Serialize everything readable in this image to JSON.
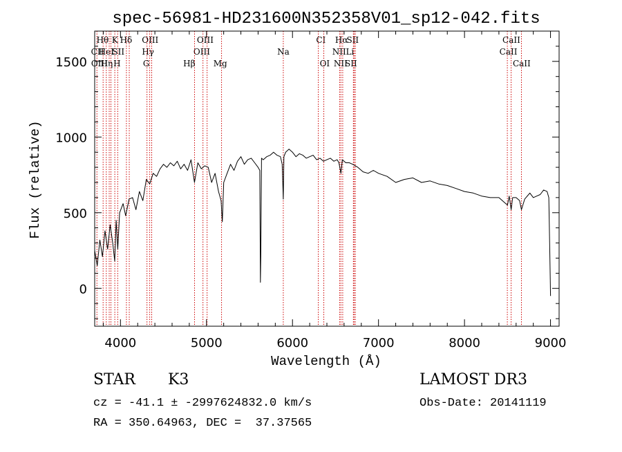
{
  "chart_data": {
    "type": "line",
    "title": "spec-56981-HD231600N352358V01_sp12-042.fits",
    "xlabel": "Wavelength (Å)",
    "ylabel": "Flux (relative)",
    "xlim": [
      3700,
      9100
    ],
    "ylim": [
      -250,
      1700
    ],
    "x_ticks": [
      "4000",
      "5000",
      "6000",
      "7000",
      "8000",
      "9000"
    ],
    "y_ticks": [
      "0",
      "500",
      "1000",
      "1500"
    ],
    "x_tick_values": [
      4000,
      5000,
      6000,
      7000,
      8000,
      9000
    ],
    "y_tick_values": [
      0,
      500,
      1000,
      1500
    ],
    "grid": false,
    "line_color": "#000000",
    "marker_color": "#cc0000",
    "series": [
      {
        "x": [
          3700,
          3730,
          3760,
          3790,
          3820,
          3850,
          3880,
          3910,
          3933,
          3950,
          3968,
          3990,
          4030,
          4060,
          4100,
          4140,
          4180,
          4220,
          4260,
          4300,
          4340,
          4380,
          4420,
          4460,
          4500,
          4540,
          4580,
          4620,
          4660,
          4700,
          4740,
          4780,
          4820,
          4860,
          4900,
          4940,
          4980,
          5020,
          5060,
          5100,
          5140,
          5170,
          5184,
          5200,
          5240,
          5280,
          5320,
          5360,
          5400,
          5440,
          5480,
          5520,
          5560,
          5600,
          5620,
          5627,
          5632,
          5640,
          5660,
          5700,
          5740,
          5780,
          5820,
          5860,
          5880,
          5893,
          5900,
          5920,
          5960,
          6000,
          6040,
          6080,
          6120,
          6160,
          6200,
          6240,
          6280,
          6320,
          6360,
          6400,
          6440,
          6480,
          6520,
          6540,
          6563,
          6580,
          6620,
          6660,
          6700,
          6760,
          6820,
          6880,
          6940,
          7000,
          7100,
          7200,
          7300,
          7400,
          7500,
          7600,
          7700,
          7800,
          7900,
          8000,
          8100,
          8200,
          8300,
          8400,
          8480,
          8500,
          8520,
          8542,
          8560,
          8600,
          8640,
          8662,
          8700,
          8760,
          8800,
          8840,
          8880,
          8920,
          8960,
          8980,
          8990,
          9000
        ],
        "y": [
          250,
          150,
          320,
          210,
          380,
          260,
          420,
          300,
          180,
          450,
          260,
          500,
          560,
          480,
          590,
          600,
          520,
          640,
          580,
          720,
          690,
          760,
          740,
          790,
          820,
          800,
          830,
          810,
          840,
          790,
          820,
          780,
          850,
          700,
          830,
          790,
          810,
          800,
          700,
          760,
          640,
          580,
          440,
          700,
          760,
          820,
          780,
          840,
          870,
          820,
          850,
          860,
          830,
          800,
          780,
          40,
          220,
          860,
          850,
          870,
          880,
          900,
          880,
          870,
          820,
          590,
          870,
          900,
          920,
          900,
          870,
          890,
          880,
          860,
          870,
          880,
          850,
          860,
          840,
          850,
          860,
          840,
          850,
          830,
          760,
          850,
          830,
          830,
          820,
          800,
          770,
          760,
          780,
          760,
          740,
          700,
          720,
          730,
          700,
          710,
          690,
          680,
          660,
          640,
          630,
          610,
          600,
          600,
          560,
          550,
          610,
          520,
          600,
          600,
          580,
          520,
          590,
          630,
          600,
          610,
          620,
          650,
          640,
          600,
          300,
          -50
        ]
      }
    ],
    "line_markers": [
      {
        "label": "Hθ",
        "wavelength": 3798,
        "row": 1,
        "text_x": 3792
      },
      {
        "label": "K",
        "wavelength": 3934,
        "row": 1,
        "text_x": 3935
      },
      {
        "label": "Hδ",
        "wavelength": 4102,
        "row": 1,
        "text_x": 4065
      },
      {
        "label": "OIII",
        "wavelength": 4363,
        "row": 1,
        "text_x": 4345
      },
      {
        "label": "OIII",
        "wavelength": 4959,
        "row": 1,
        "text_x": 4985
      },
      {
        "label": "CI",
        "wavelength": 6300,
        "row": 1,
        "text_x": 6330
      },
      {
        "label": "Hα",
        "wavelength": 6563,
        "row": 1,
        "text_x": 6570
      },
      {
        "label": "SII",
        "wavelength": 6717,
        "row": 1,
        "text_x": 6700
      },
      {
        "label": "CaII",
        "wavelength": 8498,
        "row": 1,
        "text_x": 8545
      },
      {
        "label": "CII",
        "wavelength": 3726,
        "row": 2,
        "text_x": 3732
      },
      {
        "label": "HeI",
        "wavelength": 3889,
        "row": 2,
        "text_x": 3835
      },
      {
        "label": "SII",
        "wavelength": 4069,
        "row": 2,
        "text_x": 3975
      },
      {
        "label": "Hγ",
        "wavelength": 4340,
        "row": 2,
        "text_x": 4320
      },
      {
        "label": "OIII",
        "wavelength": 5007,
        "row": 2,
        "text_x": 4945
      },
      {
        "label": "Na",
        "wavelength": 5893,
        "row": 2,
        "text_x": 5893
      },
      {
        "label": "NII",
        "wavelength": 6548,
        "row": 2,
        "text_x": 6543
      },
      {
        "label": "Li",
        "wavelength": 6708,
        "row": 2,
        "text_x": 6668
      },
      {
        "label": "CaII",
        "wavelength": 8542,
        "row": 2,
        "text_x": 8510
      },
      {
        "label": "OIII",
        "wavelength": 3869,
        "row": 3,
        "text_x": 3755
      },
      {
        "label": "Hη",
        "wavelength": 3835,
        "row": 3,
        "text_x": 3840
      },
      {
        "label": "H",
        "wavelength": 3968,
        "row": 3,
        "text_x": 3960
      },
      {
        "label": "G",
        "wavelength": 4308,
        "row": 3,
        "text_x": 4300
      },
      {
        "label": "Hβ",
        "wavelength": 4861,
        "row": 3,
        "text_x": 4800
      },
      {
        "label": "Mg",
        "wavelength": 5175,
        "row": 3,
        "text_x": 5160
      },
      {
        "label": "OI",
        "wavelength": 6364,
        "row": 3,
        "text_x": 6375
      },
      {
        "label": "NII",
        "wavelength": 6584,
        "row": 3,
        "text_x": 6560
      },
      {
        "label": "SII",
        "wavelength": 6731,
        "row": 3,
        "text_x": 6680
      },
      {
        "label": "CaII",
        "wavelength": 8662,
        "row": 3,
        "text_x": 8665
      }
    ]
  },
  "info": {
    "object_type": "STAR",
    "subclass": "K3",
    "survey": "LAMOST DR3",
    "redshift": "cz = -41.1 ± -2997624832.0 km/s",
    "obs_date": "Obs-Date: 20141119",
    "coords": "RA = 350.64963, DEC =  37.37565"
  }
}
